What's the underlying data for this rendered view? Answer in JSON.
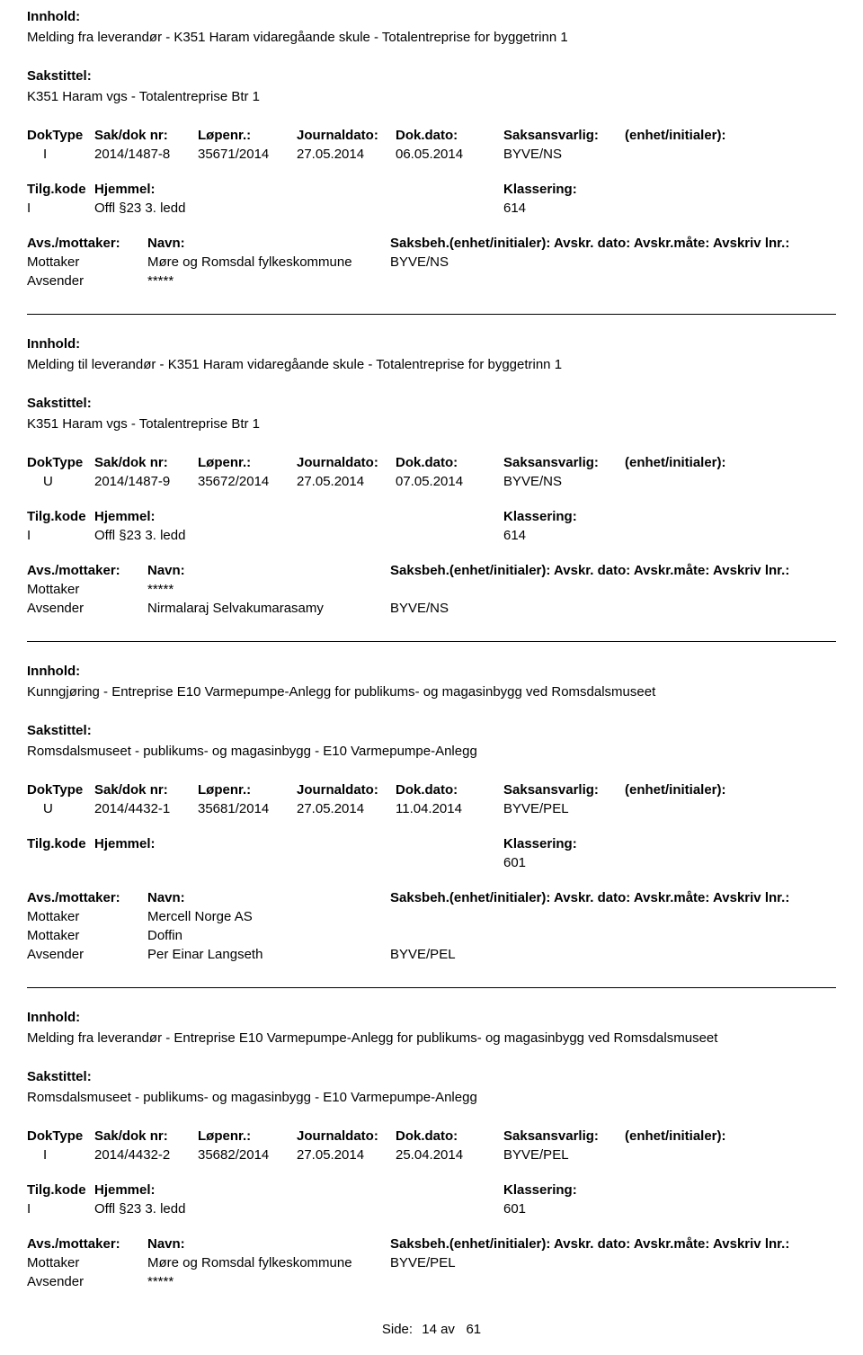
{
  "labels": {
    "innhold": "Innhold:",
    "sakstittel": "Sakstittel:",
    "doktype": "DokType",
    "sakdok": "Sak/dok nr:",
    "lopenr": "Løpenr.:",
    "journaldato": "Journaldato:",
    "dokdato": "Dok.dato:",
    "saksansvarlig": "Saksansvarlig:",
    "enhet_initialer": "(enhet/initialer):",
    "tilgkode": "Tilg.kode",
    "hjemmel": "Hjemmel:",
    "klassering": "Klassering:",
    "avs_mottaker": "Avs./mottaker:",
    "navn": "Navn:",
    "saksbeh_line": "Saksbeh.(enhet/initialer): Avskr. dato:  Avskr.måte:  Avskriv lnr.:",
    "mottaker": "Mottaker",
    "avsender": "Avsender",
    "side": "Side:",
    "av": "av"
  },
  "records": [
    {
      "divider_before": false,
      "innhold": "Melding fra leverandør - K351 Haram vidaregåande skule - Totalentreprise for byggetrinn 1",
      "sakstittel": "K351 Haram vgs - Totalentreprise Btr 1",
      "doktype": "I",
      "sakdok": "2014/1487-8",
      "lopenr": "35671/2014",
      "journaldato": "27.05.2014",
      "dokdato": "06.05.2014",
      "saksansvarlig": "BYVE/NS",
      "enhet": "",
      "tilgkode": "I",
      "hjemmel": "Offl §23 3. ledd",
      "klassering": "614",
      "parties": [
        {
          "role": "Mottaker",
          "navn": "Møre og Romsdal fylkeskommune",
          "saksbeh": "BYVE/NS"
        },
        {
          "role": "Avsender",
          "navn": "*****",
          "saksbeh": ""
        }
      ]
    },
    {
      "divider_before": true,
      "innhold": "Melding til leverandør - K351 Haram vidaregåande skule - Totalentreprise for byggetrinn 1",
      "sakstittel": "K351 Haram vgs - Totalentreprise Btr 1",
      "doktype": "U",
      "sakdok": "2014/1487-9",
      "lopenr": "35672/2014",
      "journaldato": "27.05.2014",
      "dokdato": "07.05.2014",
      "saksansvarlig": "BYVE/NS",
      "enhet": "",
      "tilgkode": "I",
      "hjemmel": "Offl §23 3. ledd",
      "klassering": "614",
      "parties": [
        {
          "role": "Mottaker",
          "navn": "*****",
          "saksbeh": ""
        },
        {
          "role": "Avsender",
          "navn": "Nirmalaraj Selvakumarasamy",
          "saksbeh": "BYVE/NS"
        }
      ]
    },
    {
      "divider_before": true,
      "innhold": "Kunngjøring - Entreprise E10 Varmepumpe-Anlegg for publikums- og magasinbygg ved Romsdalsmuseet",
      "sakstittel": "Romsdalsmuseet - publikums- og magasinbygg - E10 Varmepumpe-Anlegg",
      "doktype": "U",
      "sakdok": "2014/4432-1",
      "lopenr": "35681/2014",
      "journaldato": "27.05.2014",
      "dokdato": "11.04.2014",
      "saksansvarlig": "BYVE/PEL",
      "enhet": "",
      "tilgkode": "",
      "hjemmel": "",
      "klassering": "601",
      "parties": [
        {
          "role": "Mottaker",
          "navn": "Mercell Norge AS",
          "saksbeh": ""
        },
        {
          "role": "Mottaker",
          "navn": "Doffin",
          "saksbeh": ""
        },
        {
          "role": "Avsender",
          "navn": "Per Einar Langseth",
          "saksbeh": "BYVE/PEL"
        }
      ]
    },
    {
      "divider_before": true,
      "innhold": "Melding fra leverandør - Entreprise E10 Varmepumpe-Anlegg for publikums- og magasinbygg ved Romsdalsmuseet",
      "sakstittel": "Romsdalsmuseet - publikums- og magasinbygg - E10 Varmepumpe-Anlegg",
      "doktype": "I",
      "sakdok": "2014/4432-2",
      "lopenr": "35682/2014",
      "journaldato": "27.05.2014",
      "dokdato": "25.04.2014",
      "saksansvarlig": "BYVE/PEL",
      "enhet": "",
      "tilgkode": "I",
      "hjemmel": "Offl §23 3. ledd",
      "klassering": "601",
      "parties": [
        {
          "role": "Mottaker",
          "navn": "Møre og Romsdal fylkeskommune",
          "saksbeh": "BYVE/PEL"
        },
        {
          "role": "Avsender",
          "navn": "*****",
          "saksbeh": ""
        }
      ]
    }
  ],
  "footer": {
    "page": "14",
    "total": "61"
  }
}
